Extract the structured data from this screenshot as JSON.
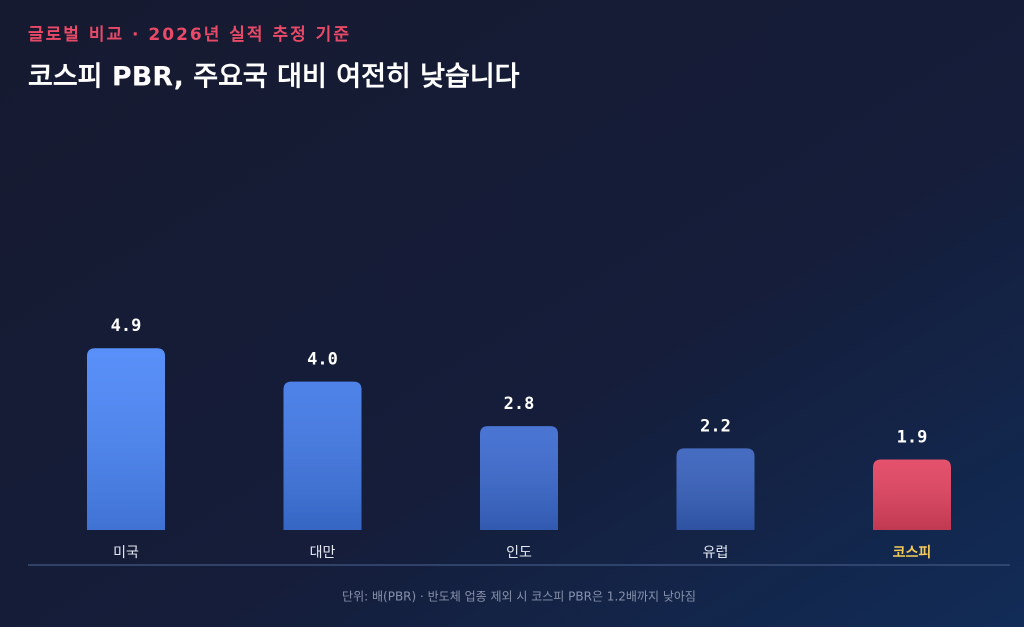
{
  "chart_data": {
    "type": "bar",
    "subtitle": "글로벌 비교 · 2026년 실적 추정 기준",
    "title": "코스피 PBR, 주요국 대비 여전히 낮습니다",
    "categories": [
      "미국",
      "대만",
      "인도",
      "유럽",
      "코스피"
    ],
    "values": [
      4.9,
      4.0,
      2.8,
      2.2,
      1.9
    ],
    "value_labels": [
      "4.9",
      "4.0",
      "2.8",
      "2.2",
      "1.9"
    ],
    "colors": [
      "#4a86f8",
      "#4078e6",
      "#3a69cf",
      "#3660bd",
      "#e2425f"
    ],
    "footnote": "단위: 배(PBR) · 반도체 업종 제외 시 코스피 PBR은 1.2배까지 낮아짐"
  }
}
